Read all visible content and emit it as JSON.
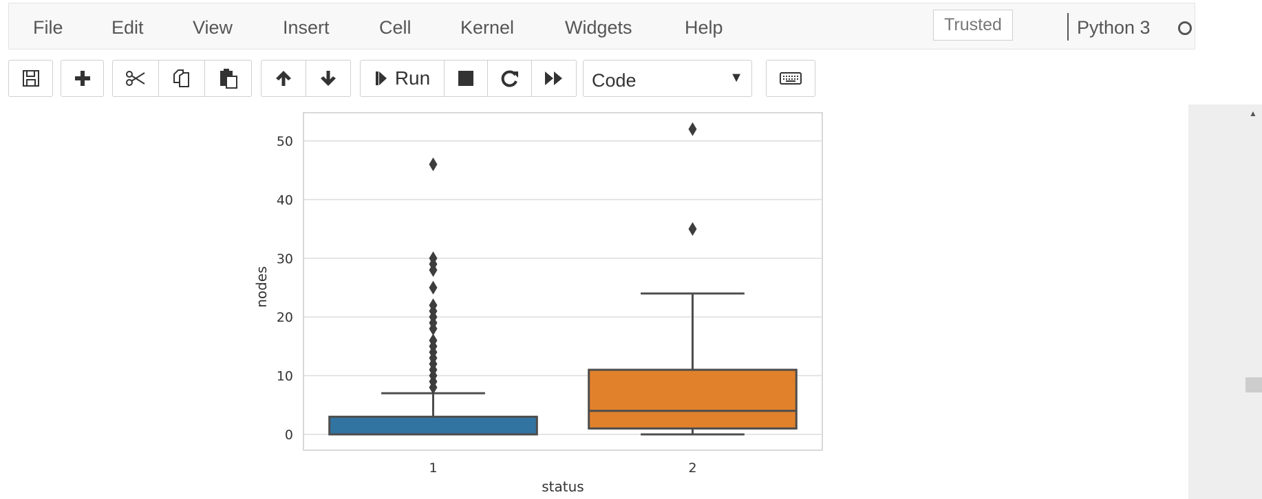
{
  "menu": {
    "items": [
      "File",
      "Edit",
      "View",
      "Insert",
      "Cell",
      "Kernel",
      "Widgets",
      "Help"
    ],
    "trusted": "Trusted",
    "kernel_name": "Python 3"
  },
  "toolbar": {
    "save_icon": "floppy-disk-icon",
    "add_icon": "plus-icon",
    "cut_icon": "scissors-icon",
    "copy_icon": "copy-icon",
    "paste_icon": "paste-icon",
    "up_icon": "arrow-up-icon",
    "down_icon": "arrow-down-icon",
    "run_label": "Run",
    "interrupt_icon": "stop-icon",
    "restart_icon": "restart-icon",
    "restart_run_icon": "fast-forward-icon",
    "cell_type": "Code",
    "keyboard_icon": "keyboard-icon"
  },
  "chart_data": {
    "type": "box",
    "xlabel": "status",
    "ylabel": "nodes",
    "categories": [
      "1",
      "2"
    ],
    "ylim": [
      -2.7,
      54.8
    ],
    "yticks": [
      0,
      10,
      20,
      30,
      40,
      50
    ],
    "grid": true,
    "series": [
      {
        "category": "1",
        "color": "#3274a1",
        "min": 0,
        "q1": 0,
        "median": 0,
        "q3": 3,
        "max": 7,
        "outliers": [
          8,
          9,
          10,
          11,
          12,
          13,
          14,
          15,
          16,
          18,
          19,
          20,
          21,
          22,
          25,
          28,
          29,
          30,
          46
        ]
      },
      {
        "category": "2",
        "color": "#e1812c",
        "min": 0,
        "q1": 1,
        "median": 4,
        "q3": 11,
        "max": 24,
        "outliers": [
          35,
          52
        ]
      }
    ]
  }
}
